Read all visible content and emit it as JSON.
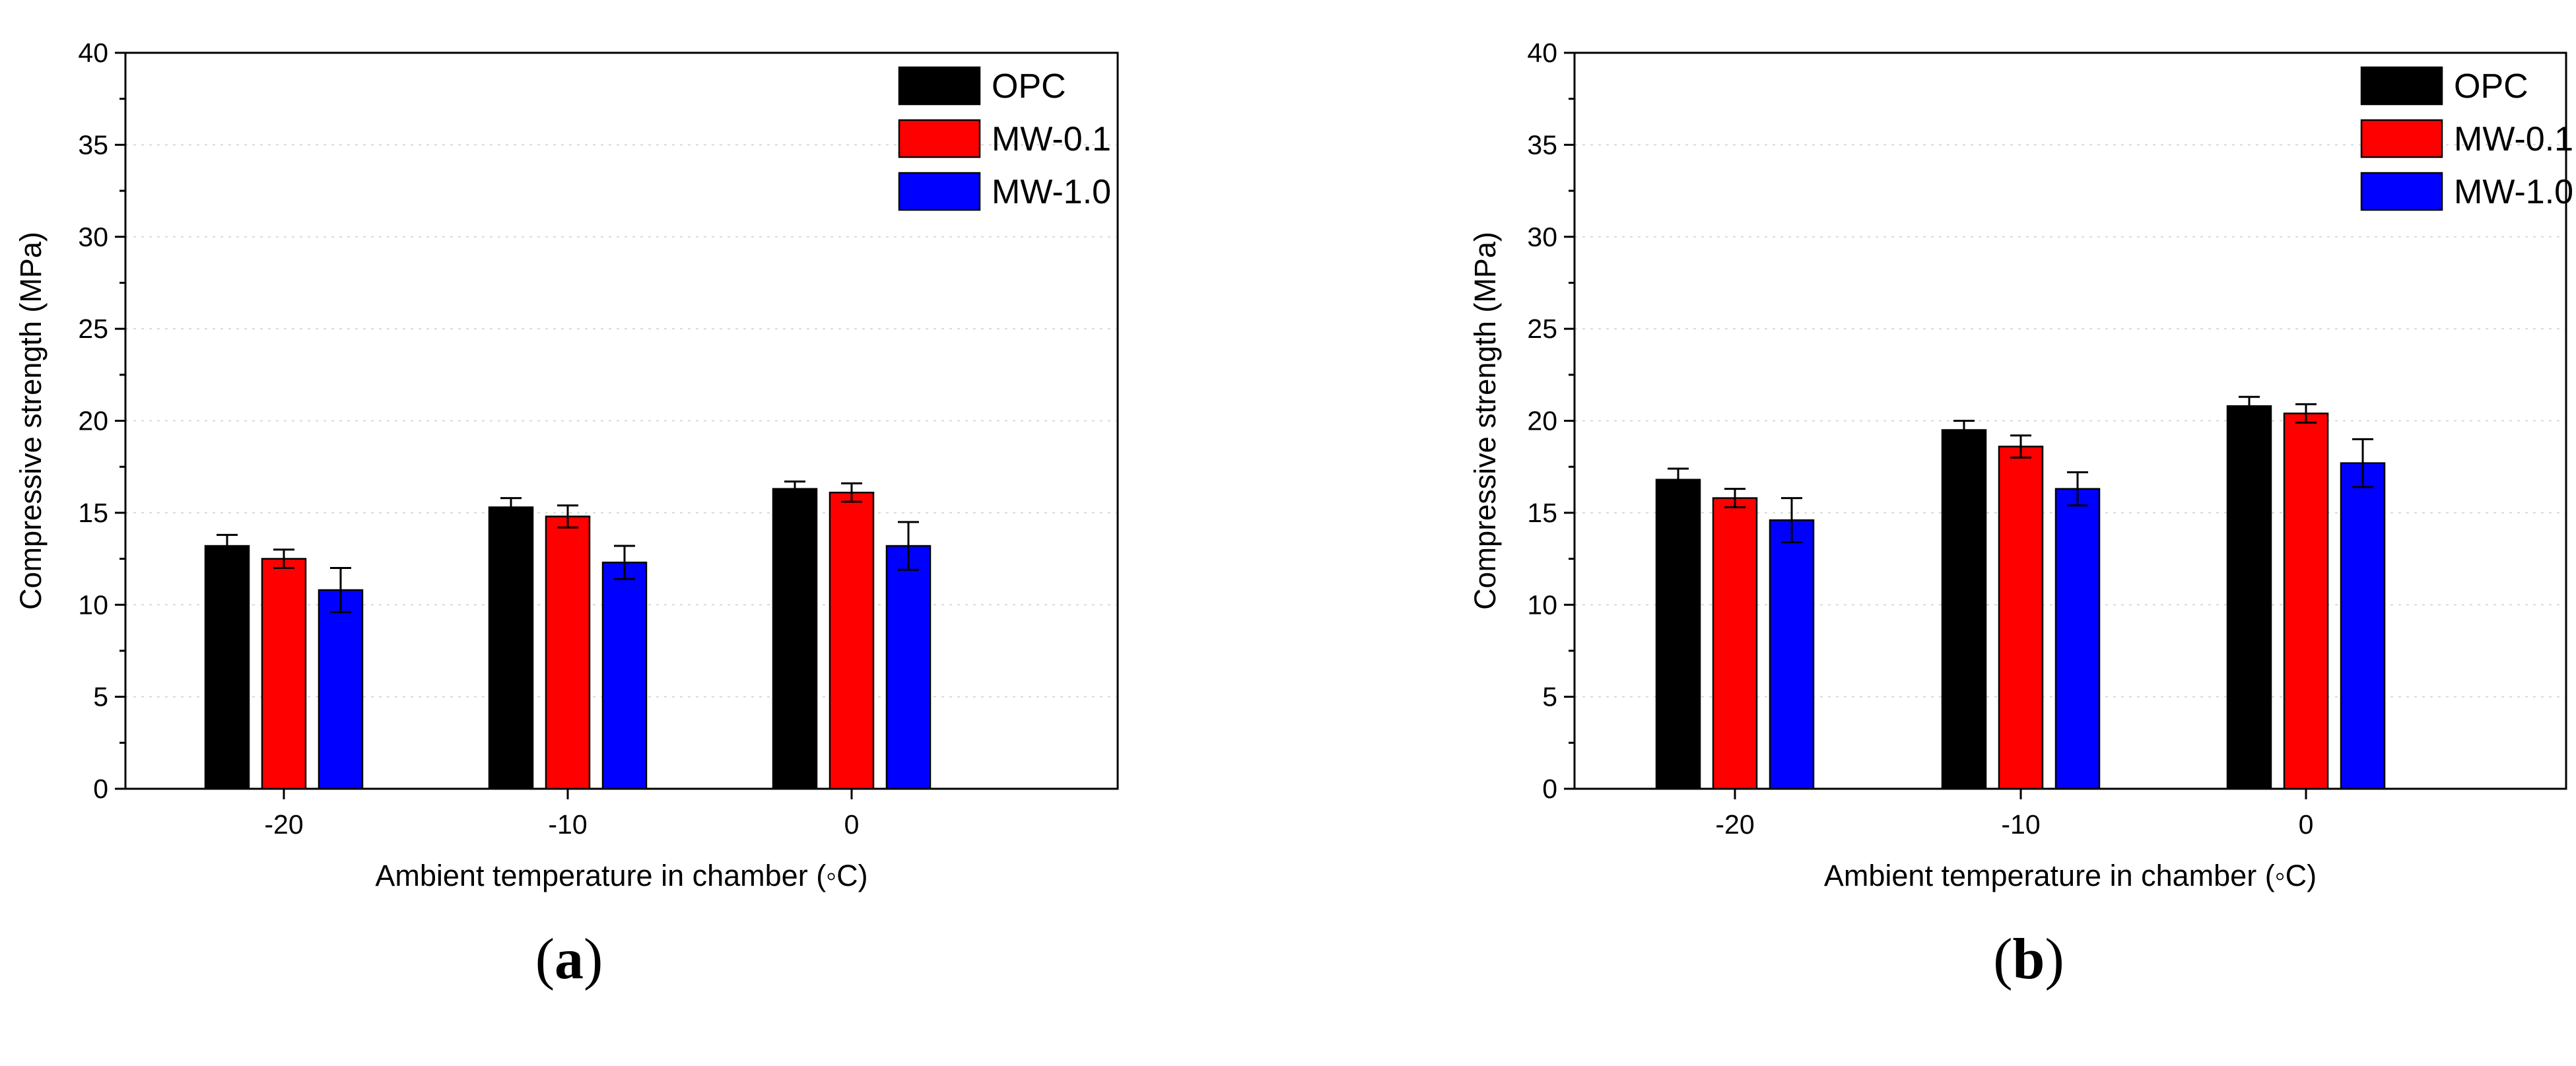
{
  "figure": {
    "panel_a": {
      "open": "(",
      "letter": "a",
      "close": ")"
    },
    "panel_b": {
      "open": "(",
      "letter": "b",
      "close": ")"
    }
  },
  "colors": {
    "OPC": "#000000",
    "MW-0.1": "#ff0000",
    "MW-1.0": "#0000ff",
    "grid": "#d9d9d9"
  },
  "chart_data": [
    {
      "panel": "a",
      "type": "bar",
      "xlabel": "Ambient temperature in chamber (◦C)",
      "ylabel": "Compressive strength (MPa)",
      "ylim": [
        0,
        40
      ],
      "yticks": [
        0,
        5,
        10,
        15,
        20,
        25,
        30,
        35,
        40
      ],
      "grid": true,
      "legend_position": "top-right",
      "categories": [
        "-20",
        "-10",
        "0"
      ],
      "series": [
        {
          "name": "OPC",
          "values": [
            13.2,
            15.3,
            16.3
          ],
          "errors": [
            0.6,
            0.5,
            0.4
          ]
        },
        {
          "name": "MW-0.1",
          "values": [
            12.5,
            14.8,
            16.1
          ],
          "errors": [
            0.5,
            0.6,
            0.5
          ]
        },
        {
          "name": "MW-1.0",
          "values": [
            10.8,
            12.3,
            13.2
          ],
          "errors": [
            1.2,
            0.9,
            1.3
          ]
        }
      ]
    },
    {
      "panel": "b",
      "type": "bar",
      "xlabel": "Ambient temperature in chamber (◦C)",
      "ylabel": "Compressive strength (MPa)",
      "ylim": [
        0,
        40
      ],
      "yticks": [
        0,
        5,
        10,
        15,
        20,
        25,
        30,
        35,
        40
      ],
      "grid": true,
      "legend_position": "top-right",
      "categories": [
        "-20",
        "-10",
        "0"
      ],
      "series": [
        {
          "name": "OPC",
          "values": [
            16.8,
            19.5,
            20.8
          ],
          "errors": [
            0.6,
            0.5,
            0.5
          ]
        },
        {
          "name": "MW-0.1",
          "values": [
            15.8,
            18.6,
            20.4
          ],
          "errors": [
            0.5,
            0.6,
            0.5
          ]
        },
        {
          "name": "MW-1.0",
          "values": [
            14.6,
            16.3,
            17.7
          ],
          "errors": [
            1.2,
            0.9,
            1.3
          ]
        }
      ]
    }
  ]
}
